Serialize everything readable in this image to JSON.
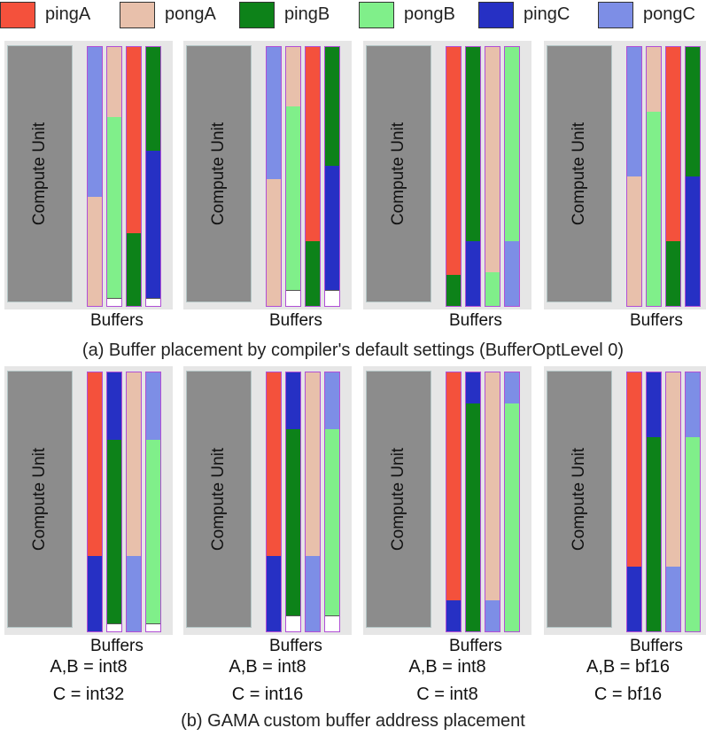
{
  "legend": [
    {
      "key": "pingA",
      "label": "pingA",
      "color": "#f4513c"
    },
    {
      "key": "pongA",
      "label": "pongA",
      "color": "#e8c0ab"
    },
    {
      "key": "pingB",
      "label": "pingB",
      "color": "#0d8219"
    },
    {
      "key": "pongB",
      "label": "pongB",
      "color": "#80ef8a"
    },
    {
      "key": "pingC",
      "label": "pingC",
      "color": "#2630c4"
    },
    {
      "key": "pongC",
      "label": "pongC",
      "color": "#7d8ee6"
    }
  ],
  "compute_label": "Compute Unit",
  "buffers_label": "Buffers",
  "caption_a": "(a) Buffer placement by compiler's default settings (BufferOptLevel 0)",
  "caption_b": "(b) GAMA custom buffer address placement",
  "row_a": [
    {
      "buffers": [
        [
          {
            "k": "pongC",
            "f": 0.58
          },
          {
            "k": "pongA",
            "f": 0.42
          }
        ],
        [
          {
            "k": "pongA",
            "f": 0.27
          },
          {
            "k": "pongB",
            "f": 0.7
          },
          {
            "k": "free",
            "f": 0.03
          }
        ],
        [
          {
            "k": "pingA",
            "f": 0.72
          },
          {
            "k": "pingB",
            "f": 0.28
          }
        ],
        [
          {
            "k": "pingB",
            "f": 0.4
          },
          {
            "k": "pingC",
            "f": 0.57
          },
          {
            "k": "free",
            "f": 0.03
          }
        ]
      ]
    },
    {
      "buffers": [
        [
          {
            "k": "pongC",
            "f": 0.51
          },
          {
            "k": "pongA",
            "f": 0.49
          }
        ],
        [
          {
            "k": "pongA",
            "f": 0.23
          },
          {
            "k": "pongB",
            "f": 0.71
          },
          {
            "k": "free",
            "f": 0.06
          }
        ],
        [
          {
            "k": "pingA",
            "f": 0.75
          },
          {
            "k": "pingB",
            "f": 0.25
          }
        ],
        [
          {
            "k": "pingB",
            "f": 0.46
          },
          {
            "k": "pingC",
            "f": 0.48
          },
          {
            "k": "free",
            "f": 0.06
          }
        ]
      ]
    },
    {
      "buffers": [
        [
          {
            "k": "pingA",
            "f": 0.88
          },
          {
            "k": "pingB",
            "f": 0.12
          }
        ],
        [
          {
            "k": "pingB",
            "f": 0.75
          },
          {
            "k": "pingC",
            "f": 0.25
          }
        ],
        [
          {
            "k": "pongA",
            "f": 0.87
          },
          {
            "k": "pongB",
            "f": 0.13
          }
        ],
        [
          {
            "k": "pongB",
            "f": 0.75
          },
          {
            "k": "pongC",
            "f": 0.25
          }
        ]
      ]
    },
    {
      "buffers": [
        [
          {
            "k": "pongC",
            "f": 0.5
          },
          {
            "k": "pongA",
            "f": 0.5
          }
        ],
        [
          {
            "k": "pongA",
            "f": 0.25
          },
          {
            "k": "pongB",
            "f": 0.75
          }
        ],
        [
          {
            "k": "pingA",
            "f": 0.75
          },
          {
            "k": "pingB",
            "f": 0.25
          }
        ],
        [
          {
            "k": "pingB",
            "f": 0.5
          },
          {
            "k": "pingC",
            "f": 0.5
          }
        ]
      ]
    }
  ],
  "row_b": [
    {
      "dtype_ab": "A,B = int8",
      "dtype_c": "C = int32",
      "buffers": [
        [
          {
            "k": "pingA",
            "f": 0.71
          },
          {
            "k": "pingC",
            "f": 0.29
          }
        ],
        [
          {
            "k": "pingC",
            "f": 0.26
          },
          {
            "k": "pingB",
            "f": 0.71
          },
          {
            "k": "free",
            "f": 0.03
          }
        ],
        [
          {
            "k": "pongA",
            "f": 0.71
          },
          {
            "k": "pongC",
            "f": 0.29
          }
        ],
        [
          {
            "k": "pongC",
            "f": 0.26
          },
          {
            "k": "pongB",
            "f": 0.71
          },
          {
            "k": "free",
            "f": 0.03
          }
        ]
      ]
    },
    {
      "dtype_ab": "A,B = int8",
      "dtype_c": "C = int16",
      "buffers": [
        [
          {
            "k": "pingA",
            "f": 0.71
          },
          {
            "k": "pingC",
            "f": 0.29
          }
        ],
        [
          {
            "k": "pingC",
            "f": 0.22
          },
          {
            "k": "pingB",
            "f": 0.72
          },
          {
            "k": "free",
            "f": 0.06
          }
        ],
        [
          {
            "k": "pongA",
            "f": 0.71
          },
          {
            "k": "pongC",
            "f": 0.29
          }
        ],
        [
          {
            "k": "pongC",
            "f": 0.22
          },
          {
            "k": "pongB",
            "f": 0.72
          },
          {
            "k": "free",
            "f": 0.06
          }
        ]
      ]
    },
    {
      "dtype_ab": "A,B = int8",
      "dtype_c": "C = int8",
      "buffers": [
        [
          {
            "k": "pingA",
            "f": 0.88
          },
          {
            "k": "pingC",
            "f": 0.12
          }
        ],
        [
          {
            "k": "pingC",
            "f": 0.12
          },
          {
            "k": "pingB",
            "f": 0.88
          }
        ],
        [
          {
            "k": "pongA",
            "f": 0.88
          },
          {
            "k": "pongC",
            "f": 0.12
          }
        ],
        [
          {
            "k": "pongC",
            "f": 0.12
          },
          {
            "k": "pongB",
            "f": 0.88
          }
        ]
      ]
    },
    {
      "dtype_ab": "A,B = bf16",
      "dtype_c": "C = bf16",
      "buffers": [
        [
          {
            "k": "pingA",
            "f": 0.75
          },
          {
            "k": "pingC",
            "f": 0.25
          }
        ],
        [
          {
            "k": "pingC",
            "f": 0.25
          },
          {
            "k": "pingB",
            "f": 0.75
          }
        ],
        [
          {
            "k": "pongA",
            "f": 0.75
          },
          {
            "k": "pongC",
            "f": 0.25
          }
        ],
        [
          {
            "k": "pongC",
            "f": 0.25
          },
          {
            "k": "pongB",
            "f": 0.75
          }
        ]
      ]
    }
  ],
  "colors": {
    "free": "#ffffff",
    "buffer_border": "#b14fd6",
    "panel_bg": "#e6e6e6",
    "compute": "#8c8c8c"
  }
}
